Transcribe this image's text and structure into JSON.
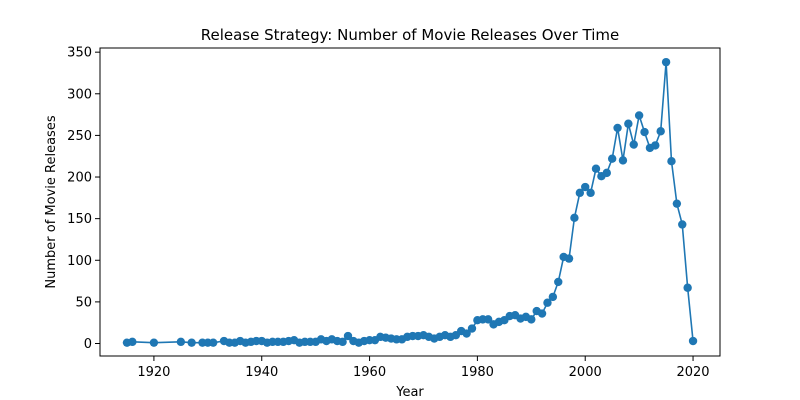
{
  "chart_data": {
    "type": "line",
    "title": "Release Strategy: Number of Movie Releases Over Time",
    "xlabel": "Year",
    "ylabel": "Number of Movie Releases",
    "xlim": [
      1910,
      2025
    ],
    "ylim": [
      -15,
      355
    ],
    "xticks": [
      1920,
      1940,
      1960,
      1980,
      2000,
      2020
    ],
    "yticks": [
      0,
      50,
      100,
      150,
      200,
      250,
      300,
      350
    ],
    "grid": false,
    "legend": "none",
    "color": "#1f77b4",
    "series": [
      {
        "x": [
          1915,
          1916,
          1920,
          1925,
          1927,
          1929,
          1930,
          1931,
          1933,
          1934,
          1935,
          1936,
          1937,
          1938,
          1939,
          1940,
          1941,
          1942,
          1943,
          1944,
          1945,
          1946,
          1947,
          1948,
          1949,
          1950,
          1951,
          1952,
          1953,
          1954,
          1955,
          1956,
          1957,
          1958,
          1959,
          1960,
          1961,
          1962,
          1963,
          1964,
          1965,
          1966,
          1967,
          1968,
          1969,
          1970,
          1971,
          1972,
          1973,
          1974,
          1975,
          1976,
          1977,
          1978,
          1979,
          1980,
          1981,
          1982,
          1983,
          1984,
          1985,
          1986,
          1987,
          1988,
          1989,
          1990,
          1991,
          1992,
          1993,
          1994,
          1995,
          1996,
          1997,
          1998,
          1999,
          2000,
          2001,
          2002,
          2003,
          2004,
          2005,
          2006,
          2007,
          2008,
          2009,
          2010,
          2011,
          2012,
          2013,
          2014,
          2015,
          2016,
          2017,
          2018,
          2019,
          2020
        ],
        "y": [
          1,
          2,
          1,
          2,
          1,
          1,
          1,
          1,
          3,
          1,
          1,
          3,
          1,
          2,
          3,
          3,
          1,
          2,
          2,
          2,
          3,
          4,
          1,
          2,
          2,
          2,
          5,
          3,
          5,
          3,
          2,
          9,
          3,
          1,
          3,
          4,
          4,
          8,
          7,
          6,
          5,
          5,
          8,
          9,
          9,
          10,
          8,
          6,
          8,
          10,
          8,
          10,
          15,
          12,
          18,
          28,
          29,
          29,
          23,
          26,
          28,
          33,
          34,
          30,
          32,
          29,
          39,
          36,
          49,
          56,
          74,
          104,
          102,
          151,
          181,
          188,
          181,
          210,
          201,
          205,
          222,
          259,
          220,
          264,
          239,
          274,
          254,
          235,
          238,
          255,
          338,
          219,
          168,
          143,
          67,
          3
        ]
      }
    ]
  }
}
